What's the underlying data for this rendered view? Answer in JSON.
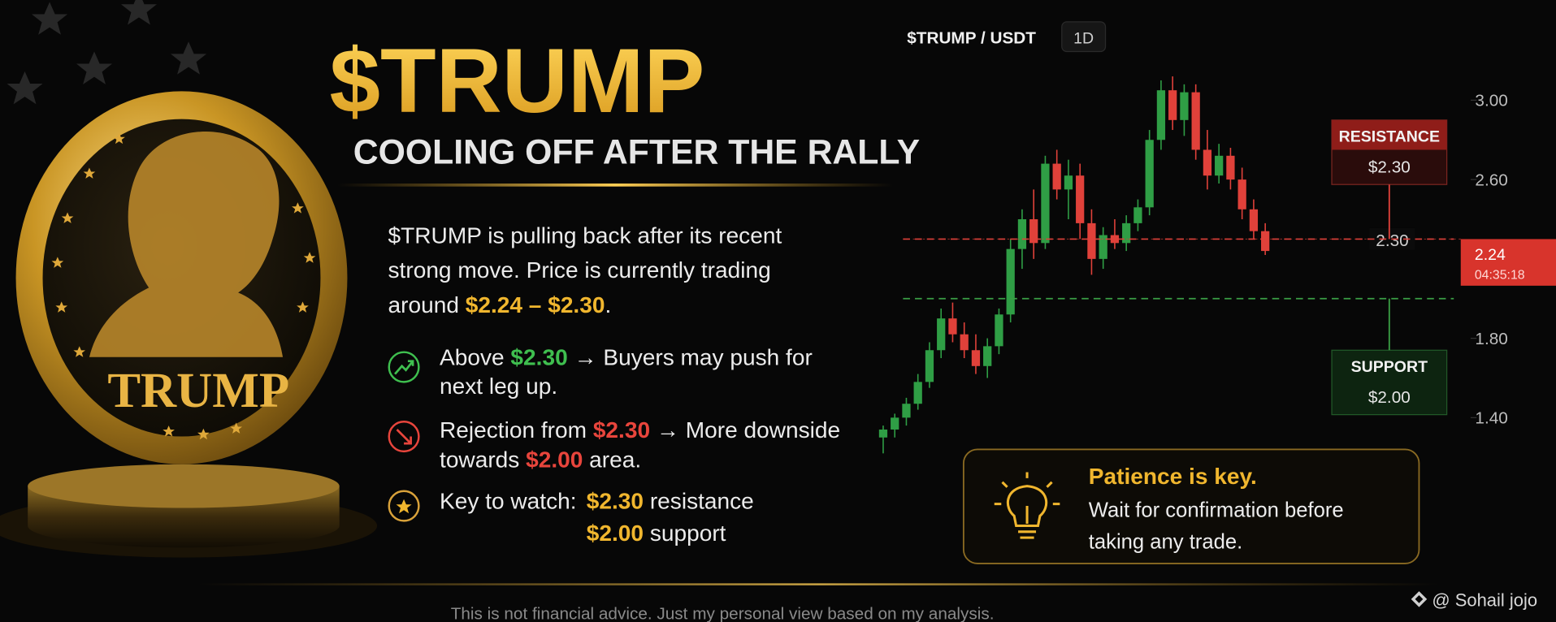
{
  "header": {
    "title": "$TRUMP",
    "subtitle": "COOLING OFF AFTER THE RALLY"
  },
  "coin": {
    "label": "TRUMP"
  },
  "intro": {
    "lines": [
      "$TRUMP is pulling back after its recent",
      "strong move. Price is currently trading"
    ],
    "last": [
      "around ",
      "$2.24 – $2.30",
      "."
    ]
  },
  "points": [
    {
      "lines": [
        [
          "Above ",
          "$2.30",
          " → Buyers may push for"
        ],
        [
          "next leg up."
        ]
      ]
    },
    {
      "lines": [
        [
          "Rejection from ",
          "$2.30",
          " → More downside"
        ],
        [
          "towards ",
          "$2.00",
          " area."
        ]
      ]
    },
    {
      "lines": [
        [
          "Key to watch:",
          "$2.30",
          " resistance"
        ],
        [
          "$2.00",
          " support"
        ]
      ]
    }
  ],
  "tip": {
    "title": "Patience is key.",
    "lines": [
      "Wait for confirmation before",
      "taking any trade."
    ]
  },
  "footer": "This is not financial advice. Just my personal view based on my analysis.",
  "credit": "@ Sohail jojo",
  "chart_data": {
    "type": "candlestick",
    "title": "$TRUMP / USDT",
    "interval": "1D",
    "up_color": "#2f9e45",
    "down_color": "#e0413a",
    "ylim": [
      1.2,
      3.2
    ],
    "yticks": [
      {
        "value": 3,
        "label": "3.00"
      },
      {
        "value": 2.6,
        "label": "2.60"
      },
      {
        "value": 1.8,
        "label": "1.80"
      },
      {
        "value": 1.4,
        "label": "1.40"
      }
    ],
    "open": [
      1.3,
      1.34,
      1.4,
      1.47,
      1.58,
      1.74,
      1.9,
      1.82,
      1.74,
      1.66,
      1.76,
      1.92,
      2.25,
      2.4,
      2.28,
      2.68,
      2.55,
      2.62,
      2.38,
      2.2,
      2.32,
      2.28,
      2.38,
      2.46,
      2.8,
      3.05,
      2.9,
      3.04,
      2.75,
      2.62,
      2.72,
      2.6,
      2.45,
      2.34
    ],
    "high": [
      1.36,
      1.42,
      1.5,
      1.62,
      1.78,
      1.95,
      1.98,
      1.88,
      1.82,
      1.8,
      1.95,
      2.3,
      2.45,
      2.55,
      2.72,
      2.75,
      2.7,
      2.68,
      2.45,
      2.36,
      2.4,
      2.42,
      2.5,
      2.85,
      3.1,
      3.12,
      3.08,
      3.08,
      2.85,
      2.78,
      2.76,
      2.66,
      2.5,
      2.38
    ],
    "low": [
      1.22,
      1.3,
      1.36,
      1.44,
      1.55,
      1.7,
      1.78,
      1.7,
      1.62,
      1.6,
      1.72,
      1.88,
      2.15,
      2.2,
      2.25,
      2.5,
      2.4,
      2.3,
      2.12,
      2.15,
      2.25,
      2.24,
      2.34,
      2.42,
      2.75,
      2.85,
      2.82,
      2.7,
      2.55,
      2.58,
      2.55,
      2.4,
      2.3,
      2.22
    ],
    "close": [
      1.34,
      1.4,
      1.47,
      1.58,
      1.74,
      1.9,
      1.82,
      1.74,
      1.66,
      1.76,
      1.92,
      2.25,
      2.4,
      2.28,
      2.68,
      2.55,
      2.62,
      2.38,
      2.2,
      2.32,
      2.28,
      2.38,
      2.46,
      2.8,
      3.05,
      2.9,
      3.04,
      2.75,
      2.62,
      2.72,
      2.6,
      2.45,
      2.34,
      2.24
    ],
    "levels": [
      {
        "name": "RESISTANCE",
        "value": 2.3,
        "label": "$2.30",
        "color": "#e0413a"
      },
      {
        "name": "SUPPORT",
        "value": 2.0,
        "label": "$2.00",
        "color": "#3a9e45"
      }
    ],
    "price_line": {
      "value": 2.3,
      "label": "2.30"
    },
    "current_price": {
      "value": 2.24,
      "label": "2.24",
      "countdown": "04:35:18"
    }
  }
}
